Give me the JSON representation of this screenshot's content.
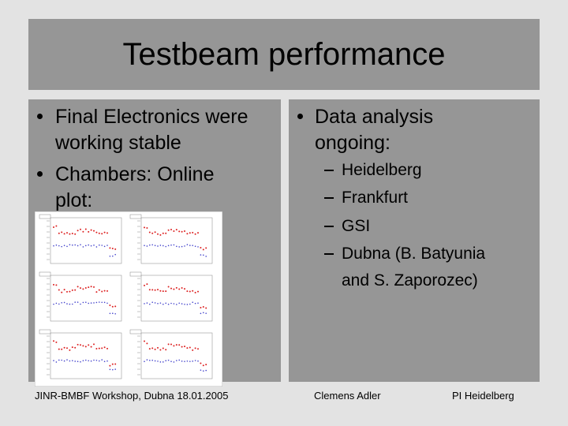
{
  "title": "Testbeam performance",
  "left_bullets": [
    "Final Electronics were working stable",
    "Chambers: Online plot:"
  ],
  "right": {
    "text": "Data analysis ongoing:",
    "items": [
      "Heidelberg",
      "Frankfurt",
      "GSI",
      "Dubna (B. Batyunia and S. Zaporozec)"
    ]
  },
  "footer": {
    "left": "JINR-BMBF Workshop, Dubna 18.01.2005",
    "center": "Clemens Adler",
    "right": "PI Heidelberg"
  }
}
